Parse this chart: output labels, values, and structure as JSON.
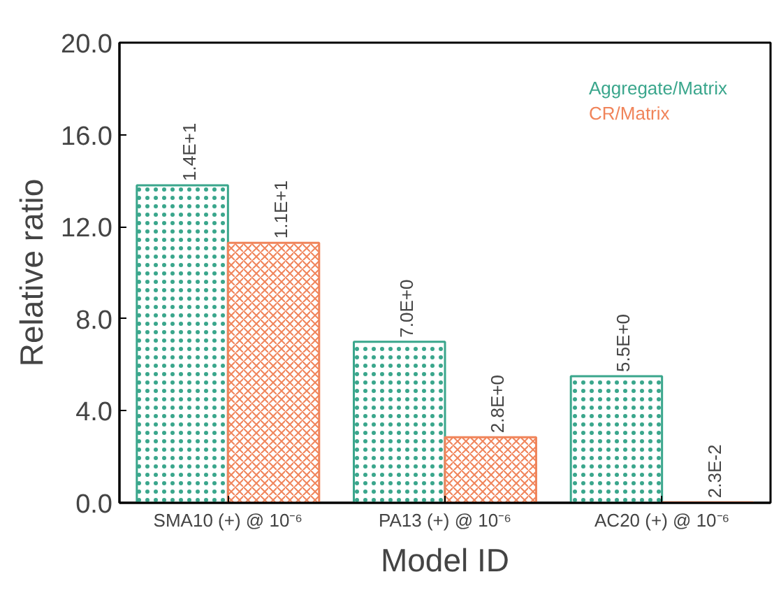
{
  "chart_data": {
    "type": "bar",
    "xlabel": "Model ID",
    "ylabel": "Relative ratio",
    "categories": [
      "SMA10 (+) @ 10⁻⁶",
      "PA13 (+) @ 10⁻⁶",
      "AC20 (+) @ 10⁻⁶"
    ],
    "series": [
      {
        "name": "Aggregate/Matrix",
        "color": "#3aa68c",
        "values": [
          13.8,
          7.0,
          5.5
        ],
        "value_labels": [
          "1.4E+1",
          "7.0E+0",
          "5.5E+0"
        ]
      },
      {
        "name": "CR/Matrix",
        "color": "#f0845a",
        "values": [
          11.3,
          2.85,
          0.023
        ],
        "value_labels": [
          "1.1E+1",
          "2.8E+0",
          "2.3E-2"
        ]
      }
    ],
    "ylim": [
      0,
      20
    ],
    "yticks": [
      {
        "value": 0,
        "label": "0.0"
      },
      {
        "value": 4,
        "label": "4.0"
      },
      {
        "value": 8,
        "label": "8.0"
      },
      {
        "value": 12,
        "label": "12.0"
      },
      {
        "value": 16,
        "label": "16.0"
      },
      {
        "value": 20,
        "label": "20.0"
      }
    ],
    "grid": false,
    "legend": "top right"
  }
}
